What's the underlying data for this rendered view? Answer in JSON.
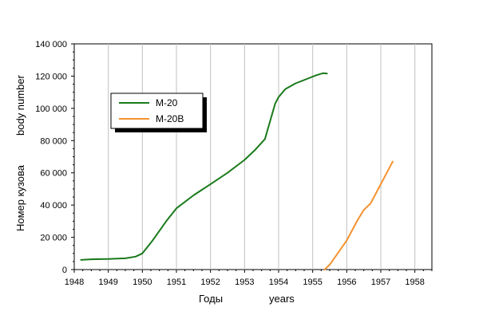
{
  "chart_data": {
    "type": "line",
    "xlabel": [
      "Годы",
      "years"
    ],
    "ylabel": [
      "Номер кузова",
      "body number"
    ],
    "xlim": [
      1948,
      1958.5
    ],
    "ylim": [
      0,
      140000
    ],
    "x_ticks": [
      1948,
      1949,
      1950,
      1951,
      1952,
      1953,
      1954,
      1955,
      1956,
      1957,
      1958
    ],
    "x_tick_labels": [
      "1948",
      "1949",
      "1950",
      "1951",
      "1952",
      "1953",
      "1954",
      "1955",
      "1956",
      "1957",
      "1958"
    ],
    "y_ticks": [
      0,
      20000,
      40000,
      60000,
      80000,
      100000,
      120000,
      140000
    ],
    "y_tick_labels": [
      "0",
      "20 000",
      "40 000",
      "60 000",
      "80 000",
      "100 000",
      "120 000",
      "140 000"
    ],
    "grid": true,
    "legend": "upper-left",
    "series": [
      {
        "name": "М-20",
        "color": "#1a7a1a",
        "x": [
          1948.2,
          1948.5,
          1949.0,
          1949.5,
          1949.8,
          1950.0,
          1950.3,
          1950.7,
          1951.0,
          1951.5,
          1952.0,
          1952.5,
          1953.0,
          1953.3,
          1953.6,
          1953.75,
          1953.9,
          1954.0,
          1954.2,
          1954.5,
          1954.8,
          1955.1,
          1955.3,
          1955.42
        ],
        "y": [
          6000,
          6400,
          6600,
          7000,
          8000,
          10000,
          18000,
          30000,
          38000,
          46000,
          53000,
          60000,
          68000,
          74000,
          81000,
          92000,
          103000,
          107000,
          112000,
          115500,
          118000,
          120500,
          121800,
          121600
        ]
      },
      {
        "name": "М-20В",
        "color": "#f5922f",
        "x": [
          1955.35,
          1955.5,
          1955.7,
          1956.0,
          1956.3,
          1956.5,
          1956.7,
          1957.0,
          1957.2,
          1957.35
        ],
        "y": [
          0,
          3000,
          9000,
          18000,
          30000,
          37000,
          41000,
          53000,
          61000,
          67000
        ]
      }
    ]
  }
}
